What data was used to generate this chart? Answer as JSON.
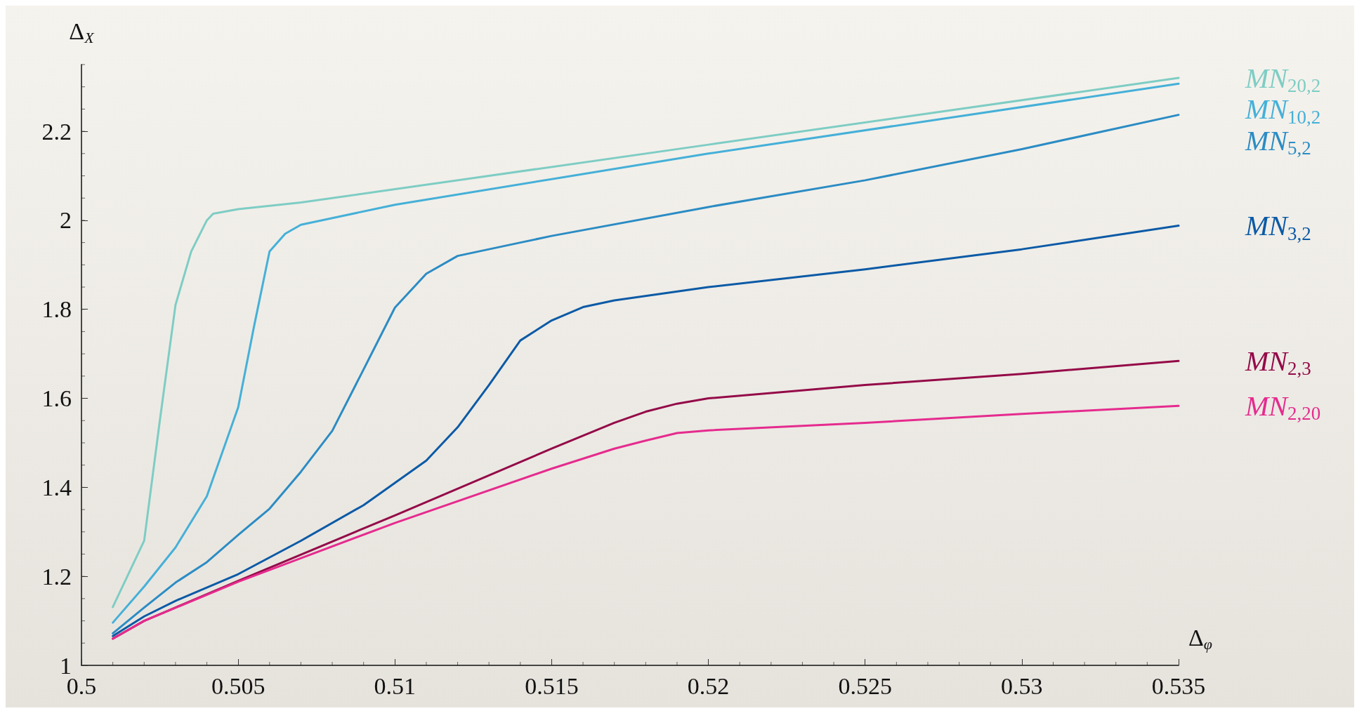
{
  "chart_data": {
    "type": "line",
    "xlabel": "Δ$_{φ}$",
    "ylabel": "Δ$_{X}$",
    "xlim": [
      0.5,
      0.535
    ],
    "xticks": [
      0.5,
      0.505,
      0.51,
      0.515,
      0.52,
      0.525,
      0.53,
      0.535
    ],
    "ylim": [
      1,
      2.35
    ],
    "yticks": [
      1,
      1.2,
      1.4,
      1.6,
      1.8,
      2,
      2.2
    ],
    "grid": false,
    "legend": false,
    "marker": "none",
    "line_style": "solid",
    "series": [
      {
        "name": "MN$_{20,2}$",
        "color": "#7ecdc4",
        "x": [
          0.501,
          0.502,
          0.5025,
          0.503,
          0.5035,
          0.504,
          0.5042,
          0.505,
          0.507,
          0.51,
          0.52,
          0.535
        ],
        "values": [
          1.131,
          1.28,
          1.55,
          1.81,
          1.93,
          2.0,
          2.015,
          2.025,
          2.04,
          2.07,
          2.17,
          2.32
        ]
      },
      {
        "name": "MN$_{10,2}$",
        "color": "#45b0d8",
        "x": [
          0.501,
          0.502,
          0.503,
          0.504,
          0.505,
          0.5055,
          0.506,
          0.5065,
          0.507,
          0.508,
          0.51,
          0.52,
          0.535
        ],
        "values": [
          1.096,
          1.177,
          1.265,
          1.38,
          1.58,
          1.76,
          1.93,
          1.97,
          1.99,
          2.005,
          2.035,
          2.15,
          2.307
        ]
      },
      {
        "name": "MN$_{5,2}$",
        "color": "#2b8cc4",
        "x": [
          0.501,
          0.502,
          0.503,
          0.504,
          0.505,
          0.506,
          0.507,
          0.508,
          0.509,
          0.51,
          0.511,
          0.512,
          0.514,
          0.515,
          0.52,
          0.525,
          0.53,
          0.535
        ],
        "values": [
          1.072,
          1.13,
          1.186,
          1.232,
          1.293,
          1.352,
          1.435,
          1.527,
          1.665,
          1.804,
          1.88,
          1.92,
          1.95,
          1.965,
          2.03,
          2.09,
          2.16,
          2.237
        ]
      },
      {
        "name": "MN$_{3,2}$",
        "color": "#0b5aa6",
        "x": [
          0.501,
          0.502,
          0.503,
          0.505,
          0.507,
          0.509,
          0.51,
          0.511,
          0.512,
          0.513,
          0.514,
          0.515,
          0.516,
          0.517,
          0.52,
          0.525,
          0.53,
          0.535
        ],
        "values": [
          1.066,
          1.11,
          1.145,
          1.205,
          1.28,
          1.36,
          1.41,
          1.46,
          1.535,
          1.63,
          1.73,
          1.775,
          1.805,
          1.82,
          1.85,
          1.89,
          1.935,
          1.988
        ]
      },
      {
        "name": "MN$_{2,3}$",
        "color": "#940a48",
        "x": [
          0.501,
          0.502,
          0.503,
          0.505,
          0.51,
          0.515,
          0.517,
          0.518,
          0.519,
          0.52,
          0.525,
          0.53,
          0.535
        ],
        "values": [
          1.06,
          1.1,
          1.13,
          1.19,
          1.337,
          1.487,
          1.545,
          1.57,
          1.588,
          1.6,
          1.63,
          1.655,
          1.684
        ]
      },
      {
        "name": "MN$_{2,20}$",
        "color": "#e52b8e",
        "x": [
          0.501,
          0.502,
          0.505,
          0.51,
          0.515,
          0.517,
          0.518,
          0.519,
          0.52,
          0.525,
          0.53,
          0.535
        ],
        "values": [
          1.06,
          1.1,
          1.188,
          1.32,
          1.442,
          1.487,
          1.505,
          1.522,
          1.528,
          1.545,
          1.565,
          1.583
        ]
      }
    ]
  }
}
